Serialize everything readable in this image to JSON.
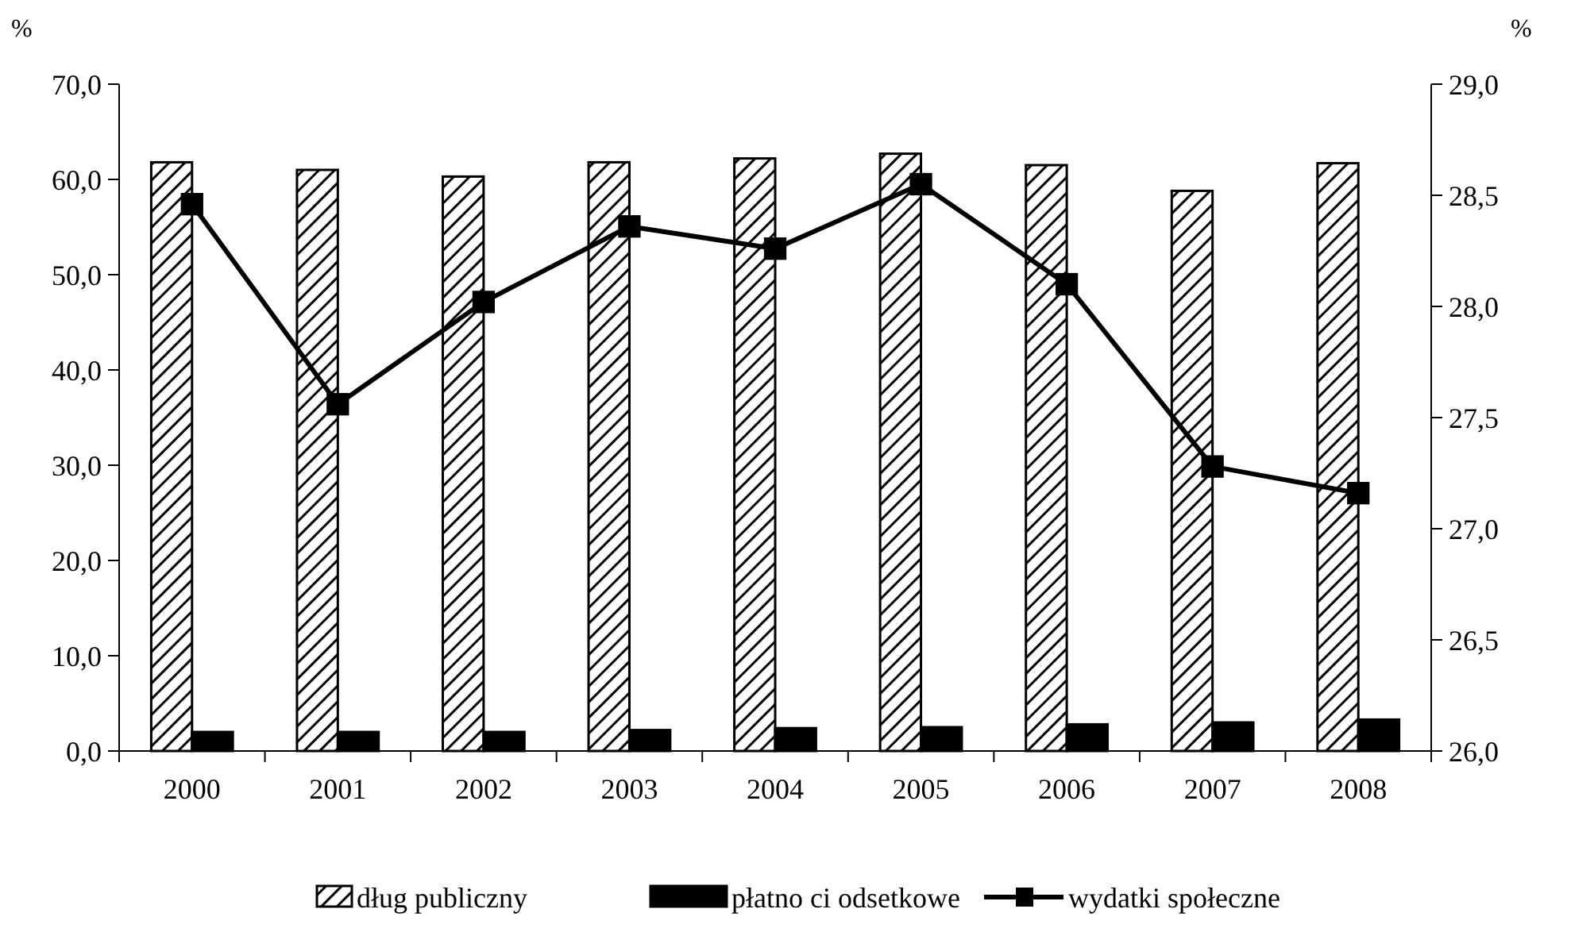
{
  "chart_data": {
    "type": "bar",
    "ylabel": "%",
    "y2label": "%",
    "categories": [
      "2000",
      "2001",
      "2002",
      "2003",
      "2004",
      "2005",
      "2006",
      "2007",
      "2008"
    ],
    "series": [
      {
        "name": "dług publiczny",
        "color": "#000000",
        "values": [
          61.8,
          61.0,
          60.3,
          61.8,
          62.2,
          62.7,
          61.5,
          58.8,
          61.7
        ]
      },
      {
        "name": "płatno ci odsetkowe",
        "color": "#000000",
        "values": [
          2.0,
          2.0,
          2.0,
          2.2,
          2.4,
          2.5,
          2.8,
          3.0,
          3.3
        ]
      },
      {
        "name": "wydatki społeczne",
        "type": "line",
        "axis": "y2",
        "color": "#000000",
        "marker": "square",
        "values": [
          28.46,
          27.56,
          28.02,
          28.36,
          28.26,
          28.55,
          28.1,
          27.28,
          27.16
        ]
      }
    ],
    "ylim": [
      0,
      70
    ],
    "yticks": [
      {
        "value": 0,
        "label": "0,0"
      },
      {
        "value": 10,
        "label": "10,0"
      },
      {
        "value": 20,
        "label": "20,0"
      },
      {
        "value": 30,
        "label": "30,0"
      },
      {
        "value": 40,
        "label": "40,0"
      },
      {
        "value": 50,
        "label": "50,0"
      },
      {
        "value": 60,
        "label": "60,0"
      },
      {
        "value": 70,
        "label": "70,0"
      }
    ],
    "y2lim": [
      26,
      29
    ],
    "y2ticks": [
      {
        "value": 26,
        "label": "26,0"
      },
      {
        "value": 26.5,
        "label": "26,5"
      },
      {
        "value": 27,
        "label": "27,0"
      },
      {
        "value": 27.5,
        "label": "27,5"
      },
      {
        "value": 28,
        "label": "28,0"
      },
      {
        "value": 28.5,
        "label": "28,5"
      },
      {
        "value": 29,
        "label": "29,0"
      }
    ],
    "grid": false,
    "legend": "bottom"
  }
}
